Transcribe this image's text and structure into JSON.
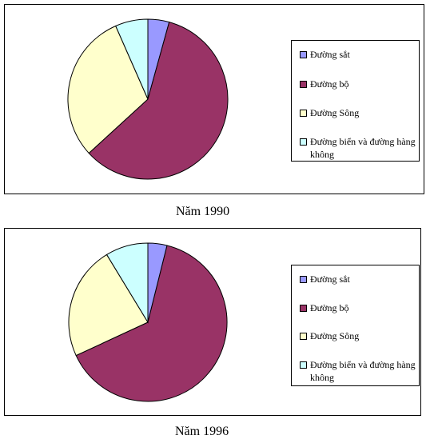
{
  "chart_data": [
    {
      "type": "pie",
      "caption": "Năm 1990",
      "slices": [
        {
          "label": "Đường sắt",
          "value": 4.3,
          "color": "#9999FF"
        },
        {
          "label": "Đường bộ",
          "value": 58.9,
          "color": "#993366"
        },
        {
          "label": "Đường Sông",
          "value": 30.2,
          "color": "#FFFFCC"
        },
        {
          "label": "Đường biển và đường hàng không",
          "value": 6.6,
          "color": "#CCFFFF"
        }
      ],
      "legend_position": "right"
    },
    {
      "type": "pie",
      "caption": "Năm 1996",
      "slices": [
        {
          "label": "Đường sắt",
          "value": 3.9,
          "color": "#9999FF"
        },
        {
          "label": "Đường bộ",
          "value": 64.2,
          "color": "#993366"
        },
        {
          "label": "Đường Sông",
          "value": 23.2,
          "color": "#FFFFCC"
        },
        {
          "label": "Đường biển và đường hàng không",
          "value": 8.7,
          "color": "#CCFFFF"
        }
      ],
      "legend_position": "right"
    }
  ]
}
